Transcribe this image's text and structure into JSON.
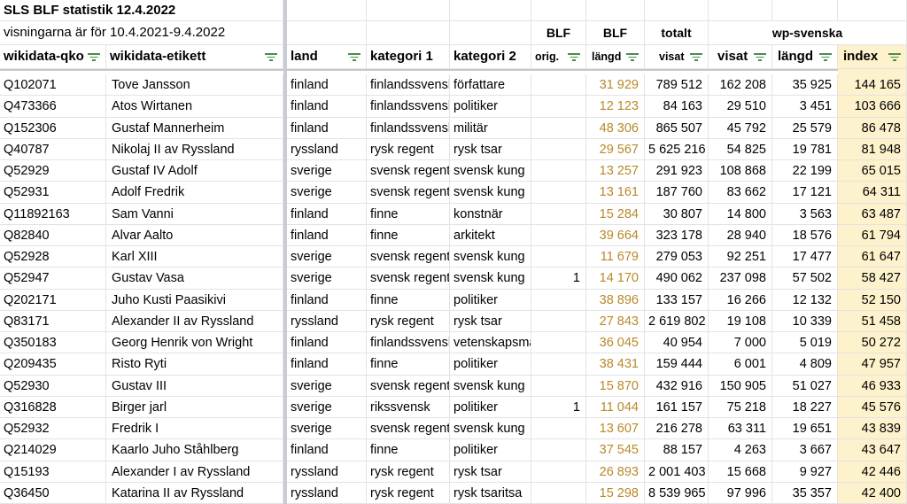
{
  "sheet": {
    "title": "SLS BLF statistik 12.4.2022",
    "subtitle": "visningarna är för 10.4.2021-9.4.2022",
    "groups": {
      "blf_orig": "BLF",
      "blf_langd": "BLF",
      "totalt": "totalt",
      "wp": "wp-svenska"
    },
    "headers": {
      "qko": "wikidata-qko",
      "etikett": "wikidata-etikett",
      "land": "land",
      "kat1": "kategori 1",
      "kat2": "kategori 2",
      "orig": "orig.",
      "langd": "längd",
      "visat": "visat",
      "wp_visat": "visat",
      "wp_langd": "längd",
      "index": "index"
    },
    "rows": [
      {
        "qko": "Q102071",
        "etikett": "Tove Jansson",
        "land": "finland",
        "kat1": "finlandssvensk",
        "kat2": "författare",
        "orig": "",
        "langd": "31 929",
        "visat": "789 512",
        "wp_visat": "162 208",
        "wp_langd": "35 925",
        "index": "144 165"
      },
      {
        "qko": "Q473366",
        "etikett": "Atos Wirtanen",
        "land": "finland",
        "kat1": "finlandssvensk",
        "kat2": "politiker",
        "orig": "",
        "langd": "12 123",
        "visat": "84 163",
        "wp_visat": "29 510",
        "wp_langd": "3 451",
        "index": "103 666"
      },
      {
        "qko": "Q152306",
        "etikett": "Gustaf Mannerheim",
        "land": "finland",
        "kat1": "finlandssvensk",
        "kat2": "militär",
        "orig": "",
        "langd": "48 306",
        "visat": "865 507",
        "wp_visat": "45 792",
        "wp_langd": "25 579",
        "index": "86 478"
      },
      {
        "qko": "Q40787",
        "etikett": "Nikolaj II av Ryssland",
        "land": "ryssland",
        "kat1": "rysk regent",
        "kat2": "rysk tsar",
        "orig": "",
        "langd": "29 567",
        "visat": "5 625 216",
        "wp_visat": "54 825",
        "wp_langd": "19 781",
        "index": "81 948"
      },
      {
        "qko": "Q52929",
        "etikett": "Gustaf IV Adolf",
        "land": "sverige",
        "kat1": "svensk regent",
        "kat2": "svensk kung",
        "orig": "",
        "langd": "13 257",
        "visat": "291 923",
        "wp_visat": "108 868",
        "wp_langd": "22 199",
        "index": "65 015"
      },
      {
        "qko": "Q52931",
        "etikett": "Adolf Fredrik",
        "land": "sverige",
        "kat1": "svensk regent",
        "kat2": "svensk kung",
        "orig": "",
        "langd": "13 161",
        "visat": "187 760",
        "wp_visat": "83 662",
        "wp_langd": "17 121",
        "index": "64 311"
      },
      {
        "qko": "Q11892163",
        "etikett": "Sam Vanni",
        "land": "finland",
        "kat1": "finne",
        "kat2": "konstnär",
        "orig": "",
        "langd": "15 284",
        "visat": "30 807",
        "wp_visat": "14 800",
        "wp_langd": "3 563",
        "index": "63 487"
      },
      {
        "qko": "Q82840",
        "etikett": "Alvar Aalto",
        "land": "finland",
        "kat1": "finne",
        "kat2": "arkitekt",
        "orig": "",
        "langd": "39 664",
        "visat": "323 178",
        "wp_visat": "28 940",
        "wp_langd": "18 576",
        "index": "61 794"
      },
      {
        "qko": "Q52928",
        "etikett": "Karl XIII",
        "land": "sverige",
        "kat1": "svensk regent",
        "kat2": "svensk kung",
        "orig": "",
        "langd": "11 679",
        "visat": "279 053",
        "wp_visat": "92 251",
        "wp_langd": "17 477",
        "index": "61 647"
      },
      {
        "qko": "Q52947",
        "etikett": "Gustav Vasa",
        "land": "sverige",
        "kat1": "svensk regent",
        "kat2": "svensk kung",
        "orig": "1",
        "langd": "14 170",
        "visat": "490 062",
        "wp_visat": "237 098",
        "wp_langd": "57 502",
        "index": "58 427"
      },
      {
        "qko": "Q202171",
        "etikett": "Juho Kusti Paasikivi",
        "land": "finland",
        "kat1": "finne",
        "kat2": "politiker",
        "orig": "",
        "langd": "38 896",
        "visat": "133 157",
        "wp_visat": "16 266",
        "wp_langd": "12 132",
        "index": "52 150"
      },
      {
        "qko": "Q83171",
        "etikett": "Alexander II av Ryssland",
        "land": "ryssland",
        "kat1": "rysk regent",
        "kat2": "rysk tsar",
        "orig": "",
        "langd": "27 843",
        "visat": "2 619 802",
        "wp_visat": "19 108",
        "wp_langd": "10 339",
        "index": "51 458"
      },
      {
        "qko": "Q350183",
        "etikett": "Georg Henrik von Wright",
        "land": "finland",
        "kat1": "finlandssvensk",
        "kat2": "vetenskapsman",
        "orig": "",
        "langd": "36 045",
        "visat": "40 954",
        "wp_visat": "7 000",
        "wp_langd": "5 019",
        "index": "50 272"
      },
      {
        "qko": "Q209435",
        "etikett": "Risto Ryti",
        "land": "finland",
        "kat1": "finne",
        "kat2": "politiker",
        "orig": "",
        "langd": "38 431",
        "visat": "159 444",
        "wp_visat": "6 001",
        "wp_langd": "4 809",
        "index": "47 957"
      },
      {
        "qko": "Q52930",
        "etikett": "Gustav III",
        "land": "sverige",
        "kat1": "svensk regent",
        "kat2": "svensk kung",
        "orig": "",
        "langd": "15 870",
        "visat": "432 916",
        "wp_visat": "150 905",
        "wp_langd": "51 027",
        "index": "46 933"
      },
      {
        "qko": "Q316828",
        "etikett": "Birger jarl",
        "land": "sverige",
        "kat1": "rikssvensk",
        "kat2": "politiker",
        "orig": "1",
        "langd": "11 044",
        "visat": "161 157",
        "wp_visat": "75 218",
        "wp_langd": "18 227",
        "index": "45 576"
      },
      {
        "qko": "Q52932",
        "etikett": "Fredrik I",
        "land": "sverige",
        "kat1": "svensk regent",
        "kat2": "svensk kung",
        "orig": "",
        "langd": "13 607",
        "visat": "216 278",
        "wp_visat": "63 311",
        "wp_langd": "19 651",
        "index": "43 839"
      },
      {
        "qko": "Q214029",
        "etikett": "Kaarlo Juho Ståhlberg",
        "land": "finland",
        "kat1": "finne",
        "kat2": "politiker",
        "orig": "",
        "langd": "37 545",
        "visat": "88 157",
        "wp_visat": "4 263",
        "wp_langd": "3 667",
        "index": "43 647"
      },
      {
        "qko": "Q15193",
        "etikett": "Alexander I av Ryssland",
        "land": "ryssland",
        "kat1": "rysk regent",
        "kat2": "rysk tsar",
        "orig": "",
        "langd": "26 893",
        "visat": "2 001 403",
        "wp_visat": "15 668",
        "wp_langd": "9 927",
        "index": "42 446"
      },
      {
        "qko": "Q36450",
        "etikett": "Katarina II av Ryssland",
        "land": "ryssland",
        "kat1": "rysk regent",
        "kat2": "rysk tsaritsa",
        "orig": "",
        "langd": "15 298",
        "visat": "8 539 965",
        "wp_visat": "97 996",
        "wp_langd": "35 357",
        "index": "42 400"
      }
    ],
    "colors": {
      "gold_text": "#b8892a",
      "index_fill": "#fdf2cc",
      "filter_icon": "#4a8f4a"
    },
    "icons": {
      "filter": "filter-icon"
    }
  }
}
